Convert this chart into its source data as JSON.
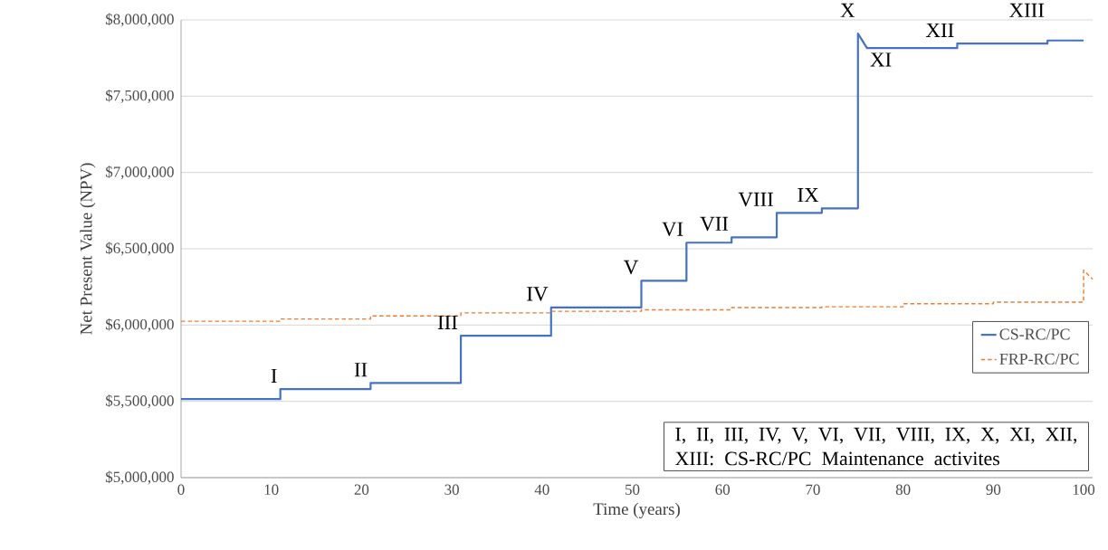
{
  "chart_data": {
    "type": "line",
    "xlabel": "Time (years)",
    "ylabel": "Net Present Value (NPV)",
    "xlim": [
      0,
      101
    ],
    "xticks": [
      0,
      10,
      20,
      30,
      40,
      50,
      60,
      70,
      80,
      90,
      100
    ],
    "ylim": [
      5000000,
      8000000
    ],
    "yticks": [
      {
        "value": 5000000,
        "label": "$5,000,000"
      },
      {
        "value": 5500000,
        "label": "$5,500,000"
      },
      {
        "value": 6000000,
        "label": "$6,000,000"
      },
      {
        "value": 6500000,
        "label": "$6,500,000"
      },
      {
        "value": 7000000,
        "label": "$7,000,000"
      },
      {
        "value": 7500000,
        "label": "$7,500,000"
      },
      {
        "value": 8000000,
        "label": "$8,000,000"
      }
    ],
    "grid": "y",
    "legend": "bottom right",
    "series": [
      {
        "name": "CS-RC/PC",
        "color": "#4472c4",
        "line_style": "solid",
        "x": [
          0,
          11,
          11,
          21,
          21,
          31,
          31,
          41,
          41,
          51,
          51,
          56,
          56,
          61,
          61,
          66,
          66,
          71,
          71,
          75,
          75,
          76,
          86,
          86,
          96,
          96,
          100
        ],
        "values": [
          5515000,
          5515000,
          5580000,
          5580000,
          5620000,
          5620000,
          5930000,
          5930000,
          6115000,
          6115000,
          6290000,
          6290000,
          6540000,
          6540000,
          6575000,
          6575000,
          6735000,
          6735000,
          6765000,
          6765000,
          7910000,
          7815000,
          7815000,
          7845000,
          7845000,
          7865000,
          7865000
        ]
      },
      {
        "name": "FRP-RC/PC",
        "color": "#ed7d31",
        "line_style": "dashed",
        "x": [
          0,
          11,
          11,
          21,
          21,
          31,
          31,
          41,
          41,
          51,
          51,
          61,
          61,
          71,
          71,
          80,
          80,
          90,
          90,
          100,
          100,
          101
        ],
        "values": [
          6025000,
          6025000,
          6040000,
          6040000,
          6060000,
          6060000,
          6080000,
          6080000,
          6090000,
          6090000,
          6100000,
          6100000,
          6115000,
          6115000,
          6120000,
          6120000,
          6140000,
          6140000,
          6150000,
          6150000,
          6360000,
          6300000
        ]
      }
    ],
    "annotations": [
      {
        "text": "I",
        "x": 11,
        "y": 5580000
      },
      {
        "text": "II",
        "x": 21,
        "y": 5620000
      },
      {
        "text": "III",
        "x": 31,
        "y": 5930000
      },
      {
        "text": "IV",
        "x": 41,
        "y": 6115000
      },
      {
        "text": "V",
        "x": 51,
        "y": 6290000
      },
      {
        "text": "VI",
        "x": 56,
        "y": 6540000
      },
      {
        "text": "VII",
        "x": 61,
        "y": 6575000
      },
      {
        "text": "VIII",
        "x": 66,
        "y": 6735000
      },
      {
        "text": "IX",
        "x": 71,
        "y": 6765000
      },
      {
        "text": "X",
        "x": 75,
        "y": 7910000
      },
      {
        "text": "XI",
        "x": 76,
        "y": 7815000
      },
      {
        "text": "XII",
        "x": 86,
        "y": 7845000
      },
      {
        "text": "XIII",
        "x": 96,
        "y": 7865000
      },
      "I, II, III, IV, V, VI, VII, VIII, IX, X, XI, XII, XIII: CS-RC/PC Maintenance activites"
    ]
  }
}
